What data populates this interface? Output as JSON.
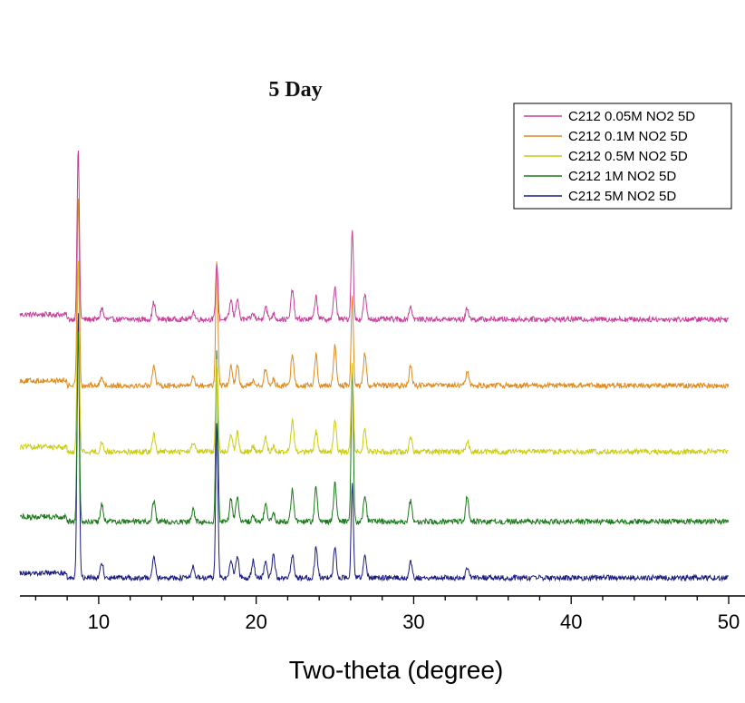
{
  "chart_data": {
    "type": "line",
    "title": "5 Day",
    "xlabel": "Two-theta (degree)",
    "ylabel": "",
    "xlim": [
      5,
      50
    ],
    "xticks": [
      10,
      20,
      30,
      40,
      50
    ],
    "y_axis_shown": false,
    "grid": false,
    "legend_position": "top-right",
    "stacking": "vertical offset per series (waterfall)",
    "peaks_two_theta": [
      8.7,
      10.2,
      13.5,
      16.0,
      17.5,
      18.4,
      18.8,
      19.8,
      20.6,
      21.1,
      22.3,
      23.8,
      25.0,
      26.1,
      26.9,
      29.8,
      33.4
    ],
    "series": [
      {
        "name": "C212 0.05M NO2 5D",
        "color": "#c8409a",
        "peak_heights": [
          9.0,
          0.6,
          0.9,
          0.4,
          3.0,
          1.0,
          1.1,
          0.3,
          0.7,
          0.3,
          1.6,
          1.2,
          1.7,
          4.8,
          1.3,
          0.7,
          0.6
        ]
      },
      {
        "name": "C212 0.1M NO2 5D",
        "color": "#e08a1c",
        "peak_heights": [
          10.0,
          0.5,
          1.1,
          0.5,
          6.5,
          1.0,
          1.1,
          0.3,
          0.9,
          0.3,
          1.7,
          1.6,
          2.1,
          4.6,
          1.7,
          1.0,
          0.8
        ]
      },
      {
        "name": "C212 0.5M NO2 5D",
        "color": "#cccc10",
        "peak_heights": [
          10.0,
          0.5,
          0.9,
          0.5,
          5.0,
          1.0,
          1.0,
          0.3,
          0.7,
          0.3,
          1.7,
          1.1,
          1.7,
          4.6,
          1.2,
          0.8,
          0.6
        ]
      },
      {
        "name": "C212 1M NO2 5D",
        "color": "#1a7a1a",
        "peak_heights": [
          10.0,
          0.9,
          1.1,
          0.6,
          9.0,
          1.2,
          1.3,
          0.3,
          0.9,
          0.5,
          1.7,
          1.8,
          2.0,
          8.0,
          1.4,
          1.1,
          1.4
        ]
      },
      {
        "name": "C212 5M NO2 5D",
        "color": "#1a1a80",
        "peak_heights": [
          14.0,
          0.8,
          1.1,
          0.6,
          8.0,
          0.9,
          1.1,
          0.9,
          0.9,
          1.3,
          1.2,
          1.6,
          1.6,
          5.0,
          1.1,
          0.9,
          0.6
        ]
      }
    ]
  }
}
